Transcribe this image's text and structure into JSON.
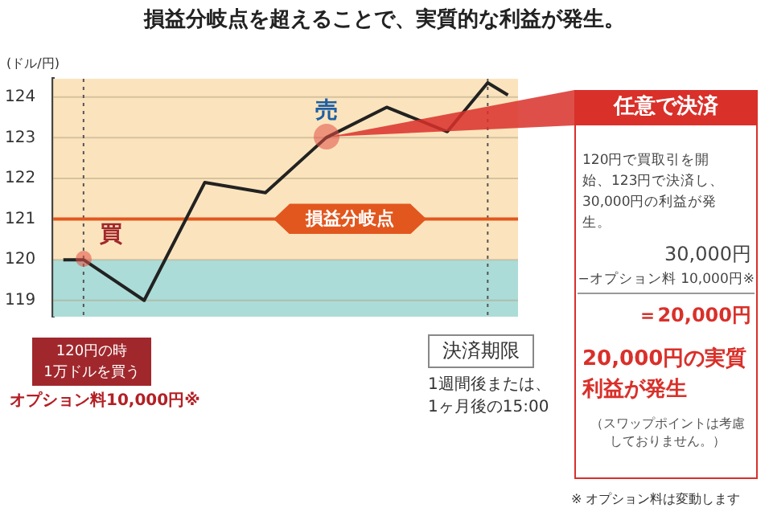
{
  "chart_data": {
    "type": "line",
    "title": "損益分岐点を超えることで、実質的な利益が発生。",
    "ylabel": "(ドル/円)",
    "categories": [
      null,
      null,
      null,
      null,
      null,
      null,
      null,
      null,
      null,
      null,
      null,
      null,
      null,
      null,
      null,
      null,
      null,
      null,
      null,
      null,
      null,
      null,
      null
    ],
    "series": [
      {
        "color": "#222222",
        "values": [
          120,
          120,
          null,
          null,
          119,
          null,
          null,
          121.9,
          null,
          null,
          121.65,
          null,
          null,
          123,
          null,
          null,
          123.75,
          null,
          null,
          123.15,
          null,
          124.35,
          124.05
        ]
      }
    ],
    "ylim": [
      118.6,
      124.45
    ],
    "yticks": [
      119,
      120,
      121,
      122,
      123,
      124
    ],
    "tick_labels": "y",
    "grid": "y",
    "marker": "none",
    "line_style": "solid",
    "bands": [
      {
        "axis": "y",
        "from": 118.6,
        "to": 120,
        "color": "#abdcd8"
      },
      {
        "axis": "y",
        "from": 120,
        "to": 124.45,
        "color": "#fbe4bd"
      }
    ],
    "ref_lines": [
      {
        "axis": "y",
        "value": 121,
        "label": "損益分岐点",
        "color": "#e2571e"
      }
    ],
    "annotations": [
      "買",
      "売",
      "120円の時\n1万ドルを買う",
      "オプション料10,000円※",
      "決済期限",
      "1週間後または、\n1ヶ月後の15:00",
      "任意で決済",
      "120円で買取引を開始、123円で決済し、30,000円の利益が発生。",
      "30,000円",
      "−オプション料 10,000円※",
      "＝20,000円",
      "20,000円の実質利益が発生",
      "（スワップポイントは考慮しておりません。）",
      "※ オプション料は変動します"
    ]
  }
}
